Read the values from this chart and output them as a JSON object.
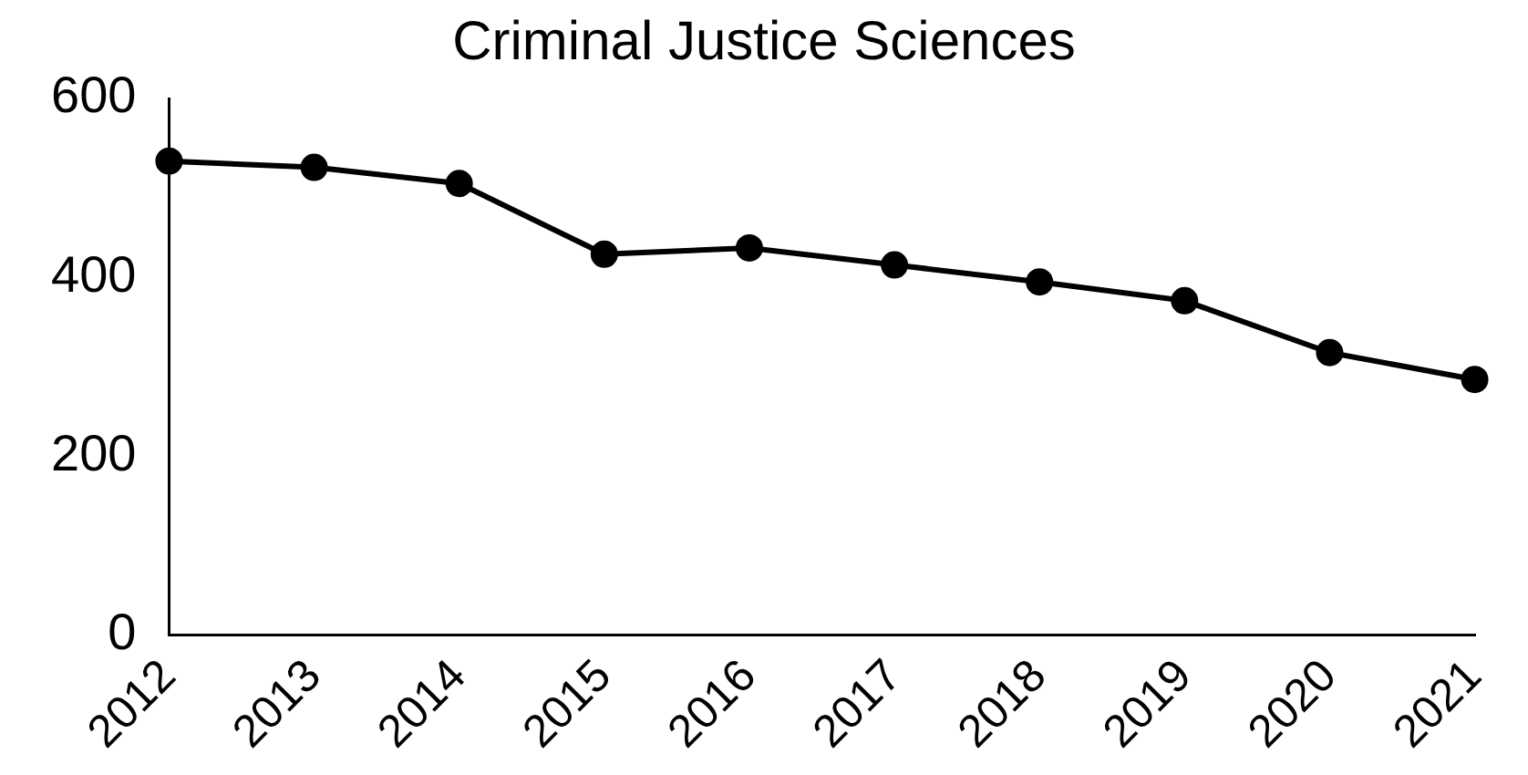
{
  "chart_data": {
    "type": "line",
    "title": "Criminal Justice Sciences",
    "categories": [
      "2012",
      "2013",
      "2014",
      "2015",
      "2016",
      "2017",
      "2018",
      "2019",
      "2020",
      "2021"
    ],
    "series": [
      {
        "color": "#000000",
        "values": [
          530,
          523,
          505,
          426,
          433,
          414,
          395,
          374,
          316,
          286
        ]
      }
    ],
    "ylim": [
      0,
      600
    ],
    "yticks": [
      0,
      200,
      400,
      600
    ],
    "grid": false,
    "legend": false,
    "marker": "circle",
    "line_style": "solid"
  }
}
